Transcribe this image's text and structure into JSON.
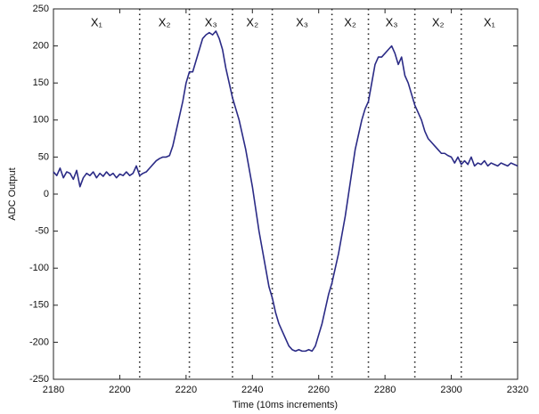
{
  "chart_data": {
    "type": "line",
    "xlabel": "Time (10ms increments)",
    "ylabel": "ADC Output",
    "color": "#2b2b86",
    "boundary_color": "#222",
    "xlim": [
      2180,
      2320
    ],
    "xticks": [
      2180,
      2200,
      2220,
      2240,
      2260,
      2280,
      2300,
      2320
    ],
    "ylim": [
      -250,
      250
    ],
    "yticks": [
      -250,
      -200,
      -150,
      -100,
      -50,
      0,
      50,
      100,
      150,
      200,
      250
    ],
    "grid": false,
    "boundaries": [
      2206,
      2221,
      2234,
      2246,
      2264,
      2275,
      2289,
      2303
    ],
    "regions": [
      "X₁",
      "X₂",
      "X₃",
      "X₂",
      "X₃",
      "X₂",
      "X₃",
      "X₂",
      "X₁"
    ],
    "x": [
      2180,
      2181,
      2182,
      2183,
      2184,
      2185,
      2186,
      2187,
      2188,
      2189,
      2190,
      2191,
      2192,
      2193,
      2194,
      2195,
      2196,
      2197,
      2198,
      2199,
      2200,
      2201,
      2202,
      2203,
      2204,
      2205,
      2206,
      2207,
      2208,
      2209,
      2210,
      2211,
      2212,
      2213,
      2214,
      2215,
      2216,
      2217,
      2218,
      2219,
      2220,
      2221,
      2222,
      2223,
      2224,
      2225,
      2226,
      2227,
      2228,
      2229,
      2230,
      2231,
      2232,
      2233,
      2234,
      2235,
      2236,
      2237,
      2238,
      2239,
      2240,
      2241,
      2242,
      2243,
      2244,
      2245,
      2246,
      2247,
      2248,
      2249,
      2250,
      2251,
      2252,
      2253,
      2254,
      2255,
      2256,
      2257,
      2258,
      2259,
      2260,
      2261,
      2262,
      2263,
      2264,
      2265,
      2266,
      2267,
      2268,
      2269,
      2270,
      2271,
      2272,
      2273,
      2274,
      2275,
      2276,
      2277,
      2278,
      2279,
      2280,
      2281,
      2282,
      2283,
      2284,
      2285,
      2286,
      2287,
      2288,
      2289,
      2290,
      2291,
      2292,
      2293,
      2294,
      2295,
      2296,
      2297,
      2298,
      2299,
      2300,
      2301,
      2302,
      2303,
      2304,
      2305,
      2306,
      2307,
      2308,
      2309,
      2310,
      2311,
      2312,
      2313,
      2314,
      2315,
      2316,
      2317,
      2318,
      2319,
      2320
    ],
    "values": [
      30,
      25,
      35,
      22,
      30,
      28,
      20,
      32,
      10,
      22,
      28,
      25,
      30,
      22,
      28,
      24,
      30,
      25,
      28,
      22,
      27,
      25,
      30,
      25,
      28,
      38,
      25,
      28,
      30,
      35,
      40,
      45,
      48,
      50,
      50,
      52,
      65,
      85,
      105,
      125,
      150,
      165,
      165,
      180,
      195,
      210,
      215,
      218,
      215,
      220,
      210,
      195,
      170,
      150,
      130,
      115,
      100,
      80,
      60,
      35,
      10,
      -20,
      -50,
      -75,
      -100,
      -125,
      -140,
      -160,
      -175,
      -185,
      -195,
      -205,
      -210,
      -212,
      -210,
      -212,
      -212,
      -210,
      -212,
      -205,
      -190,
      -175,
      -155,
      -135,
      -120,
      -100,
      -80,
      -55,
      -30,
      0,
      30,
      60,
      80,
      100,
      115,
      125,
      150,
      175,
      185,
      185,
      190,
      195,
      200,
      190,
      175,
      185,
      160,
      150,
      135,
      120,
      110,
      100,
      85,
      75,
      70,
      65,
      60,
      55,
      55,
      52,
      50,
      42,
      50,
      40,
      45,
      40,
      50,
      38,
      42,
      40,
      45,
      38,
      42,
      40,
      38,
      42,
      40,
      38,
      42,
      40,
      38
    ]
  }
}
